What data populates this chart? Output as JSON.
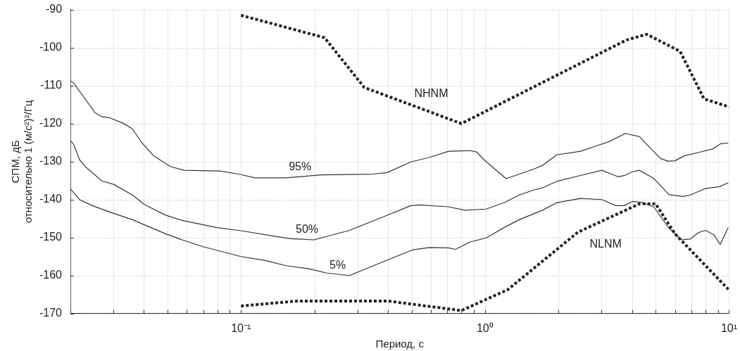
{
  "chart_data": {
    "type": "line",
    "xlabel": "Период, с",
    "ylabel": "СПМ, дБ\nотносительно 1 (м/с²)²/Гц",
    "log": "x",
    "grid": true,
    "legend": false,
    "marker": "none",
    "xlim": [
      0.02,
      10
    ],
    "ylim": [
      -170,
      -90
    ],
    "xticks": [
      {
        "value": 0.02,
        "label": null
      },
      {
        "value": 0.03,
        "label": null
      },
      {
        "value": 0.04,
        "label": null
      },
      {
        "value": 0.05,
        "label": null
      },
      {
        "value": 0.06,
        "label": null
      },
      {
        "value": 0.07,
        "label": null
      },
      {
        "value": 0.08,
        "label": null
      },
      {
        "value": 0.09,
        "label": null
      },
      {
        "value": 0.1,
        "label": "10⁻¹"
      },
      {
        "value": 0.2,
        "label": null
      },
      {
        "value": 0.3,
        "label": null
      },
      {
        "value": 0.4,
        "label": null
      },
      {
        "value": 0.5,
        "label": null
      },
      {
        "value": 0.6,
        "label": null
      },
      {
        "value": 0.7,
        "label": null
      },
      {
        "value": 0.8,
        "label": null
      },
      {
        "value": 0.9,
        "label": null
      },
      {
        "value": 1,
        "label": "10⁰"
      },
      {
        "value": 2,
        "label": null
      },
      {
        "value": 3,
        "label": null
      },
      {
        "value": 4,
        "label": null
      },
      {
        "value": 5,
        "label": null
      },
      {
        "value": 6,
        "label": null
      },
      {
        "value": 7,
        "label": null
      },
      {
        "value": 8,
        "label": null
      },
      {
        "value": 9,
        "label": null
      },
      {
        "value": 10,
        "label": "10¹"
      }
    ],
    "yticks": [
      -170,
      -160,
      -150,
      -140,
      -130,
      -120,
      -110,
      -100,
      -90
    ],
    "series": [
      {
        "name": "NHNM",
        "color": "#222222",
        "line_style": "dotted",
        "x": [
          0.1,
          0.22,
          0.32,
          0.8,
          3.8,
          4.6,
          6.3,
          7.9,
          10
        ],
        "values": [
          -91.5,
          -97.4,
          -110.5,
          -120,
          -98,
          -96.5,
          -101,
          -113.5,
          -115.6
        ]
      },
      {
        "name": "NLNM",
        "color": "#222222",
        "line_style": "dotted",
        "x": [
          0.1,
          0.17,
          0.4,
          0.8,
          1.24,
          2.4,
          4.3,
          5,
          6,
          10
        ],
        "values": [
          -168,
          -166.7,
          -166.7,
          -169.2,
          -163.7,
          -148.6,
          -141.1,
          -141.1,
          -149,
          -163.8
        ]
      },
      {
        "name": "95%",
        "color": "#333333",
        "line_style": "solid",
        "x": [
          0.02,
          0.0206,
          0.0252,
          0.0269,
          0.0287,
          0.0329,
          0.0359,
          0.0393,
          0.0439,
          0.0513,
          0.0586,
          0.0819,
          0.098,
          0.114,
          0.153,
          0.213,
          0.347,
          0.397,
          0.496,
          0.593,
          0.708,
          0.865,
          0.925,
          0.989,
          1.22,
          1.58,
          1.72,
          1.97,
          2.46,
          2.88,
          3.21,
          3.76,
          4.29,
          4.59,
          5.24,
          5.61,
          6,
          6.55,
          7.49,
          8.55,
          9.25,
          9.9
        ],
        "values": [
          -108.7,
          -109.3,
          -117.1,
          -118.2,
          -118.4,
          -119.9,
          -121.4,
          -125.1,
          -128.5,
          -131.3,
          -132.3,
          -132.5,
          -133.3,
          -134.3,
          -134.3,
          -133.5,
          -133.3,
          -132.9,
          -130.1,
          -128.9,
          -127.3,
          -127.1,
          -127.5,
          -129.5,
          -134.5,
          -132,
          -131,
          -128.2,
          -127.3,
          -125.8,
          -124.8,
          -122.6,
          -123.4,
          -125.4,
          -129.2,
          -129.9,
          -129.8,
          -128.5,
          -127.6,
          -126.7,
          -125.3,
          -125.1
        ]
      },
      {
        "name": "50%",
        "color": "#333333",
        "line_style": "solid",
        "x": [
          0.02,
          0.0206,
          0.0218,
          0.023,
          0.0269,
          0.0301,
          0.0359,
          0.0402,
          0.0491,
          0.0574,
          0.08,
          0.1,
          0.136,
          0.16,
          0.199,
          0.278,
          0.388,
          0.496,
          0.542,
          0.708,
          0.827,
          1.01,
          1.21,
          1.38,
          1.58,
          1.72,
          1.97,
          2.41,
          3.01,
          3.51,
          3.71,
          4.02,
          4.29,
          4.91,
          5.67,
          6.48,
          6.93,
          8,
          9.14,
          9.9
        ],
        "values": [
          -124.5,
          -125.4,
          -129.5,
          -131.3,
          -135.1,
          -136,
          -138.8,
          -141.3,
          -144.1,
          -145.5,
          -147.4,
          -148.2,
          -149.6,
          -150.3,
          -150.6,
          -148.1,
          -144.4,
          -141.6,
          -141.4,
          -141.9,
          -142.8,
          -142.5,
          -140.7,
          -138.8,
          -137.5,
          -136.9,
          -135.2,
          -133.8,
          -132.3,
          -134,
          -133.7,
          -132.7,
          -132.3,
          -134.4,
          -138.7,
          -139.2,
          -138.8,
          -137.1,
          -136.6,
          -135.6
        ]
      },
      {
        "name": "5%",
        "color": "#333333",
        "line_style": "solid",
        "x": [
          0.02,
          0.0218,
          0.0246,
          0.0294,
          0.0359,
          0.0491,
          0.0574,
          0.07,
          0.1,
          0.125,
          0.153,
          0.19,
          0.223,
          0.278,
          0.388,
          0.507,
          0.593,
          0.708,
          0.757,
          0.865,
          1.01,
          1.21,
          1.38,
          1.72,
          1.97,
          2.46,
          3.01,
          3.44,
          3.71,
          4.02,
          4.38,
          4.91,
          5.67,
          6.39,
          6.93,
          7.49,
          8,
          8.66,
          9.2,
          9.9
        ],
        "values": [
          -137.2,
          -140,
          -141.6,
          -143.4,
          -145.3,
          -149,
          -150.6,
          -152.4,
          -155,
          -156,
          -157.4,
          -158.2,
          -159.3,
          -160,
          -156.2,
          -153.2,
          -152.6,
          -152.7,
          -153.1,
          -151.2,
          -150.1,
          -147.2,
          -145.3,
          -142.8,
          -140.8,
          -139.7,
          -140,
          -141.6,
          -141.6,
          -140.5,
          -140.7,
          -141.9,
          -147.5,
          -150.6,
          -150.4,
          -148.7,
          -148.1,
          -149.2,
          -151.8,
          -147.5
        ]
      }
    ]
  }
}
